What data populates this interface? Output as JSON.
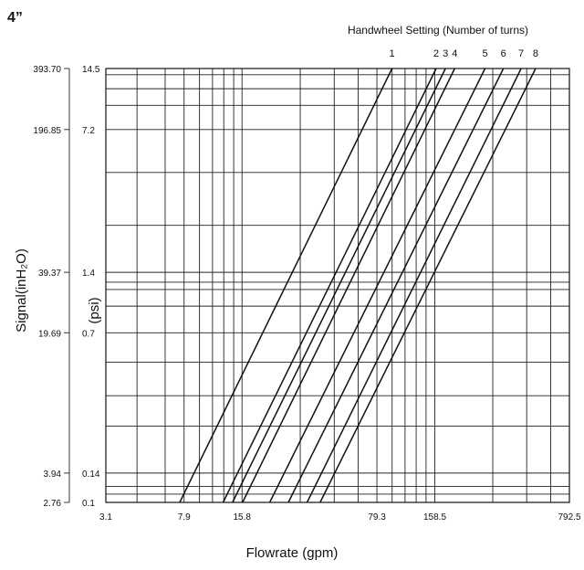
{
  "chart_data": {
    "type": "line",
    "size_label": "4”",
    "title": "Handwheel Setting (Number of turns)",
    "xlabel": "Flowrate (gpm)",
    "ylabel_left": "Signal(inH₂O)",
    "ylabel_right": "(psi)",
    "x_scale": "log",
    "y_scale": "log",
    "xlim": [
      3.1,
      792.5
    ],
    "ylim_psi": [
      0.1,
      14.5
    ],
    "x_tick_labels": [
      "3.1",
      "7.9",
      "15.8",
      "79.3",
      "158.5",
      "792.5"
    ],
    "x_tick_values": [
      3.1,
      7.9,
      15.8,
      79.3,
      158.5,
      792.5
    ],
    "y_ticks_psi": [
      "14.5",
      "7.2",
      "1.4",
      "0.7",
      "0.14",
      "0.1"
    ],
    "y_ticks_psi_values": [
      14.5,
      7.2,
      1.4,
      0.7,
      0.14,
      0.1
    ],
    "y_ticks_inh2o": [
      "393.70",
      "196.85",
      "39.37",
      "19.69",
      "3.94",
      "2.76"
    ],
    "x_grid": [
      3.1,
      4.5,
      6.3,
      7.9,
      9.5,
      11.1,
      12.7,
      14.3,
      15.8,
      31.7,
      47.6,
      63.4,
      79.3,
      95.1,
      111.0,
      126.8,
      142.7,
      158.5,
      317,
      475.5,
      634,
      792.5
    ],
    "y_grid_psi": [
      0.1,
      0.11,
      0.12,
      0.14,
      0.24,
      0.34,
      0.5,
      0.7,
      0.95,
      1.15,
      1.25,
      1.4,
      2.4,
      4.4,
      7.2,
      9.5,
      11.5,
      13.5,
      14.5
    ],
    "series": [
      {
        "label": "1",
        "x": [
          7.5,
          95.0
        ],
        "y_psi": [
          0.1,
          14.5
        ]
      },
      {
        "label": "2",
        "x": [
          12.6,
          161.0
        ],
        "y_psi": [
          0.1,
          14.5
        ]
      },
      {
        "label": "3",
        "x": [
          14.1,
          180.0
        ],
        "y_psi": [
          0.1,
          14.5
        ]
      },
      {
        "label": "4",
        "x": [
          15.9,
          201.0
        ],
        "y_psi": [
          0.1,
          14.5
        ]
      },
      {
        "label": "5",
        "x": [
          22.0,
          289.0
        ],
        "y_psi": [
          0.1,
          14.5
        ]
      },
      {
        "label": "6",
        "x": [
          27.5,
          360.0
        ],
        "y_psi": [
          0.1,
          14.5
        ]
      },
      {
        "label": "7",
        "x": [
          34.4,
          445.0
        ],
        "y_psi": [
          0.1,
          14.5
        ]
      },
      {
        "label": "8",
        "x": [
          40.2,
          529.0
        ],
        "y_psi": [
          0.1,
          14.5
        ]
      }
    ]
  }
}
